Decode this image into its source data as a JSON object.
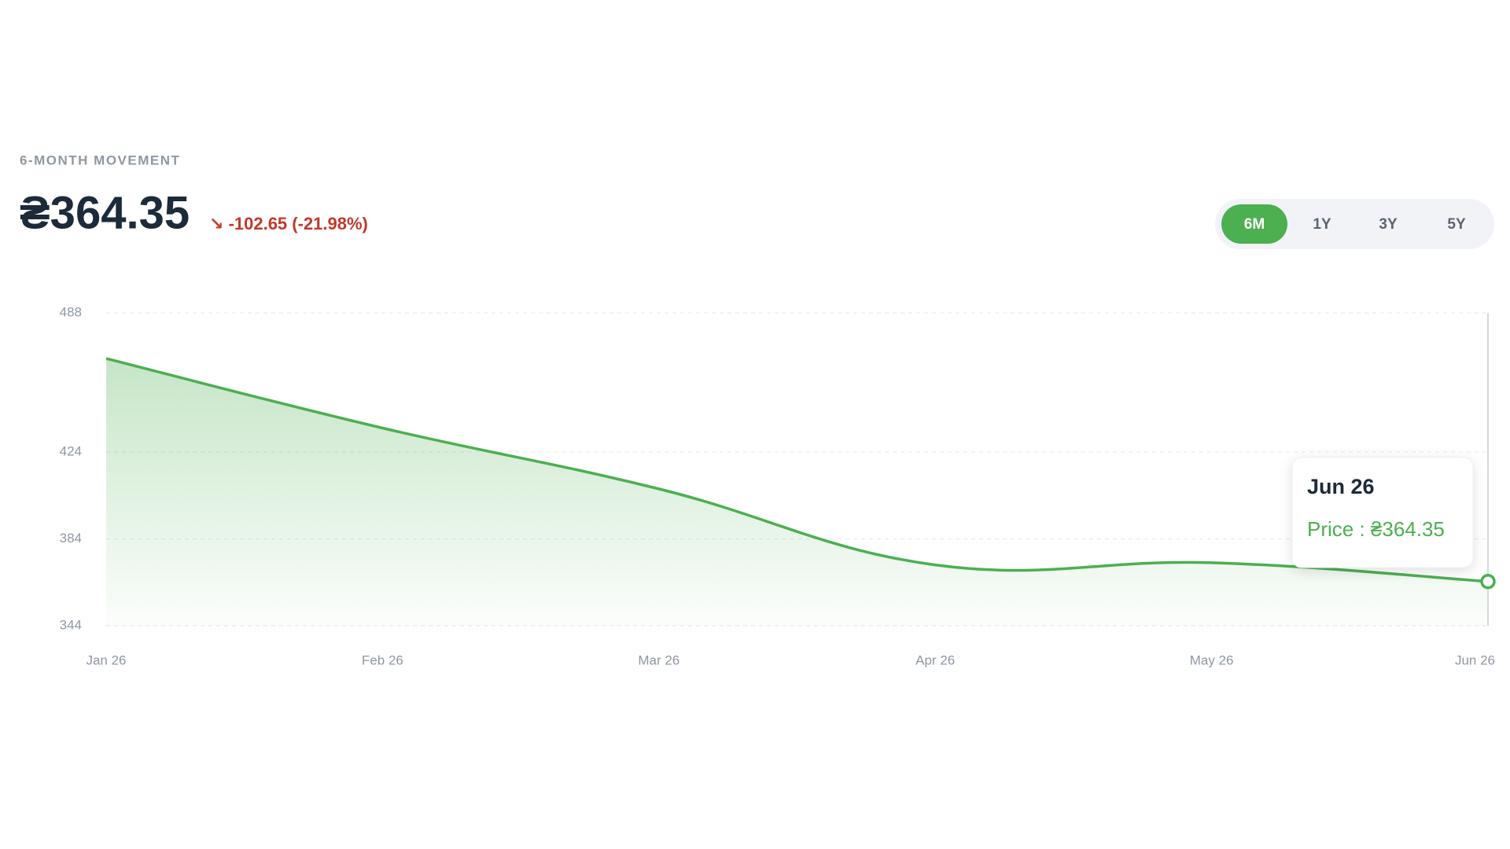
{
  "header": {
    "label": "6-MONTH MOVEMENT",
    "price": "₴364.35",
    "change": "↘ -102.65 (-21.98%)"
  },
  "range_buttons": [
    {
      "label": "6M",
      "active": true
    },
    {
      "label": "1Y",
      "active": false
    },
    {
      "label": "3Y",
      "active": false
    },
    {
      "label": "5Y",
      "active": false
    }
  ],
  "tooltip": {
    "title": "Jun 26",
    "text": "Price : ₴364.35"
  },
  "chart_data": {
    "type": "area",
    "categories": [
      "Jan 26",
      "Feb 26",
      "Mar 26",
      "Apr 26",
      "May 26",
      "Jun 26"
    ],
    "values": [
      467,
      435,
      407,
      372,
      373,
      364.35
    ],
    "color": "#4caf50",
    "ylim": [
      344,
      488
    ],
    "yticks": [
      344,
      384,
      424,
      488
    ],
    "grid": true
  }
}
